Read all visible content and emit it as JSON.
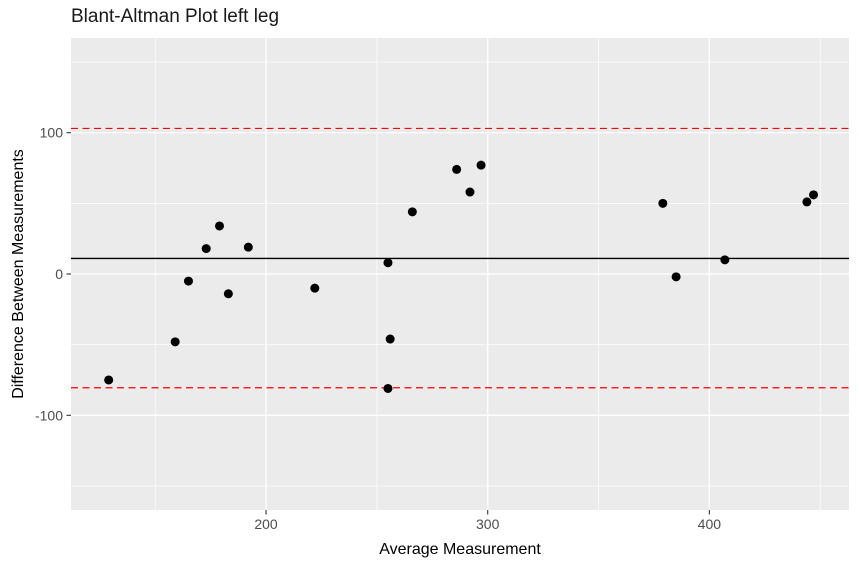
{
  "page": {
    "background": "#ffffff"
  },
  "chart_data": {
    "type": "scatter",
    "title": "Blant-Altman Plot left leg",
    "xlabel": "Average Measurement",
    "ylabel": "Difference Between Measurements",
    "xlim": [
      112,
      463
    ],
    "ylim": [
      -167,
      167
    ],
    "x_ticks": [
      200,
      300,
      400
    ],
    "y_ticks": [
      -100,
      0,
      100
    ],
    "x_minor": [
      150,
      250,
      350,
      450
    ],
    "y_minor": [
      -150,
      -50,
      50,
      150
    ],
    "grid": true,
    "legend": "none",
    "panel_bg": "#EBEBEB",
    "grid_color": "#FFFFFF",
    "tick_color": "#333333",
    "tick_label_color": "#4d4d4d",
    "point_color": "#000000",
    "mean_line": {
      "value": 11,
      "color": "#000000",
      "style": "solid"
    },
    "upper_loa_line": {
      "value": 103,
      "color": "#FF0000",
      "style": "dashed"
    },
    "lower_loa_line": {
      "value": -80.5,
      "color": "#FF0000",
      "style": "dashed"
    },
    "points": [
      {
        "x": 129,
        "y": -75
      },
      {
        "x": 159,
        "y": -48
      },
      {
        "x": 165,
        "y": -5
      },
      {
        "x": 173,
        "y": 18
      },
      {
        "x": 179,
        "y": 34
      },
      {
        "x": 183,
        "y": -14
      },
      {
        "x": 192,
        "y": 19
      },
      {
        "x": 222,
        "y": -10
      },
      {
        "x": 255,
        "y": 8
      },
      {
        "x": 255,
        "y": -81
      },
      {
        "x": 256,
        "y": -46
      },
      {
        "x": 266,
        "y": 44
      },
      {
        "x": 286,
        "y": 74
      },
      {
        "x": 292,
        "y": 58
      },
      {
        "x": 297,
        "y": 77
      },
      {
        "x": 379,
        "y": 50
      },
      {
        "x": 385,
        "y": -2
      },
      {
        "x": 407,
        "y": 10
      },
      {
        "x": 444,
        "y": 51
      },
      {
        "x": 447,
        "y": 56
      }
    ]
  }
}
